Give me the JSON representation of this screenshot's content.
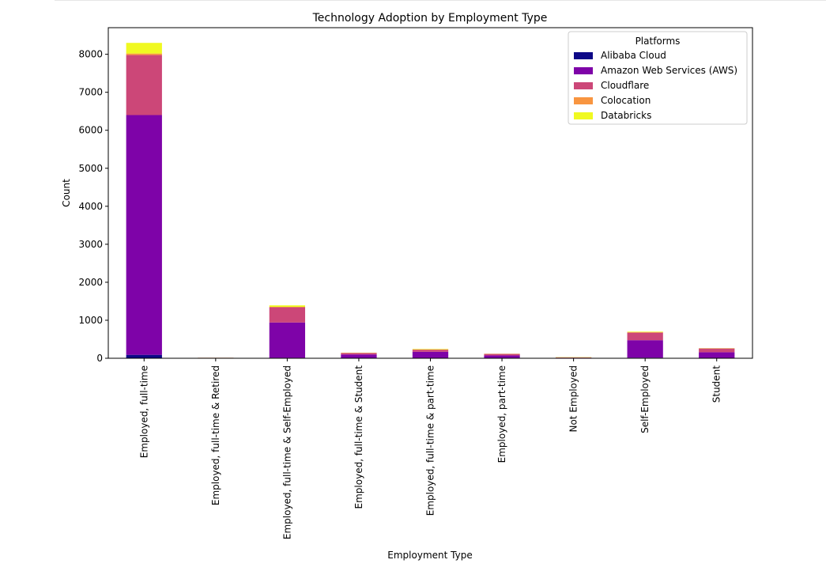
{
  "chart_data": {
    "type": "bar",
    "stacked": true,
    "title": "Technology Adoption by Employment Type",
    "xlabel": "Employment Type",
    "ylabel": "Count",
    "ylim": [
      0,
      8700
    ],
    "yticks": [
      0,
      1000,
      2000,
      3000,
      4000,
      5000,
      6000,
      7000,
      8000
    ],
    "categories": [
      "Employed, full-time",
      "Employed, full-time & Retired",
      "Employed, full-time & Self-Employed",
      "Employed, full-time & Student",
      "Employed, full-time & part-time",
      "Employed, part-time",
      "Not Employed",
      "Self-Employed",
      "Student"
    ],
    "legend": {
      "title": "Platforms",
      "position": "top-right"
    },
    "grid": false,
    "series": [
      {
        "name": "Alibaba Cloud",
        "color": "#0d0887",
        "values": [
          90,
          2,
          12,
          5,
          6,
          4,
          2,
          15,
          8
        ]
      },
      {
        "name": "Amazon Web Services (AWS)",
        "color": "#7e03a8",
        "values": [
          6310,
          8,
          930,
          95,
          165,
          70,
          10,
          460,
          150
        ]
      },
      {
        "name": "Cloudflare",
        "color": "#cc4778",
        "values": [
          1580,
          3,
          400,
          40,
          55,
          40,
          8,
          200,
          100
        ]
      },
      {
        "name": "Colocation",
        "color": "#f89540",
        "values": [
          40,
          1,
          10,
          3,
          5,
          2,
          5,
          10,
          4
        ]
      },
      {
        "name": "Databricks",
        "color": "#f0f921",
        "values": [
          280,
          1,
          40,
          5,
          15,
          4,
          6,
          15,
          5
        ]
      }
    ]
  }
}
